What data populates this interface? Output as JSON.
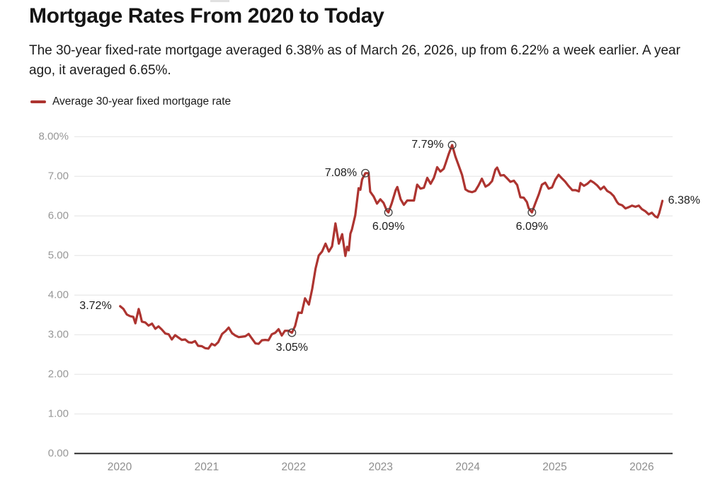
{
  "chart_data": {
    "type": "line",
    "title": "Mortgage Rates From 2020 to Today",
    "subtitle": "The 30-year fixed-rate mortgage averaged 6.38% as of March 26, 2026, up from 6.22% a week earlier. A year ago, it averaged 6.65%.",
    "legend": {
      "label": "Average 30-year fixed mortgage rate",
      "position": "top-left"
    },
    "colors": {
      "line": "#ad3430",
      "grid": "#e3e3e3",
      "axis": "#2d2d2d",
      "marker_stroke": "#3f3f3f",
      "tick_label": "#979797",
      "annotation_text": "#1c1c1c"
    },
    "grid": "horizontal-only",
    "ylim": [
      0,
      8
    ],
    "y_axis": {
      "tick_labels": [
        "8.00%",
        "7.00",
        "6.00",
        "5.00",
        "4.00",
        "3.00",
        "2.00",
        "1.00",
        "0.00"
      ],
      "tick_values": [
        8,
        7,
        6,
        5,
        4,
        3,
        2,
        1,
        0
      ]
    },
    "x_axis": {
      "tick_labels": [
        "2020",
        "2021",
        "2022",
        "2023",
        "2024",
        "2025",
        "2026"
      ],
      "tick_values": [
        2020,
        2021,
        2022,
        2023,
        2024,
        2025,
        2026
      ]
    },
    "annotations": [
      {
        "label": "3.72%",
        "date": "2020-01-02",
        "value": 3.72,
        "marker": false,
        "placement": "left"
      },
      {
        "label": "3.05%",
        "date": "2021-12-23",
        "value": 3.05,
        "marker": true,
        "placement": "below"
      },
      {
        "label": "7.08%",
        "date": "2022-10-27",
        "value": 7.08,
        "marker": true,
        "placement": "left"
      },
      {
        "label": "6.09%",
        "date": "2023-02-02",
        "value": 6.09,
        "marker": true,
        "placement": "below"
      },
      {
        "label": "7.79%",
        "date": "2023-10-26",
        "value": 7.79,
        "marker": true,
        "placement": "left"
      },
      {
        "label": "6.09%",
        "date": "2024-09-26",
        "value": 6.09,
        "marker": true,
        "placement": "below"
      },
      {
        "label": "6.38%",
        "date": "2026-03-26",
        "value": 6.38,
        "marker": false,
        "placement": "right"
      }
    ],
    "series": [
      {
        "name": "Average 30-year fixed mortgage rate",
        "points": [
          [
            "2020-01-02",
            3.72
          ],
          [
            "2020-01-16",
            3.65
          ],
          [
            "2020-01-30",
            3.51
          ],
          [
            "2020-02-13",
            3.47
          ],
          [
            "2020-02-27",
            3.45
          ],
          [
            "2020-03-05",
            3.29
          ],
          [
            "2020-03-19",
            3.65
          ],
          [
            "2020-03-26",
            3.5
          ],
          [
            "2020-04-02",
            3.33
          ],
          [
            "2020-04-16",
            3.31
          ],
          [
            "2020-04-30",
            3.23
          ],
          [
            "2020-05-14",
            3.28
          ],
          [
            "2020-05-28",
            3.15
          ],
          [
            "2020-06-11",
            3.21
          ],
          [
            "2020-06-25",
            3.13
          ],
          [
            "2020-07-09",
            3.03
          ],
          [
            "2020-07-23",
            3.01
          ],
          [
            "2020-08-06",
            2.88
          ],
          [
            "2020-08-20",
            2.99
          ],
          [
            "2020-09-03",
            2.93
          ],
          [
            "2020-09-17",
            2.87
          ],
          [
            "2020-10-01",
            2.88
          ],
          [
            "2020-10-15",
            2.81
          ],
          [
            "2020-10-29",
            2.8
          ],
          [
            "2020-11-12",
            2.84
          ],
          [
            "2020-11-25",
            2.72
          ],
          [
            "2020-12-10",
            2.71
          ],
          [
            "2020-12-24",
            2.66
          ],
          [
            "2021-01-07",
            2.65
          ],
          [
            "2021-01-21",
            2.77
          ],
          [
            "2021-02-04",
            2.73
          ],
          [
            "2021-02-18",
            2.81
          ],
          [
            "2021-03-04",
            3.02
          ],
          [
            "2021-03-18",
            3.09
          ],
          [
            "2021-04-01",
            3.18
          ],
          [
            "2021-04-15",
            3.04
          ],
          [
            "2021-04-29",
            2.98
          ],
          [
            "2021-05-13",
            2.94
          ],
          [
            "2021-05-27",
            2.95
          ],
          [
            "2021-06-10",
            2.96
          ],
          [
            "2021-06-24",
            3.02
          ],
          [
            "2021-07-08",
            2.9
          ],
          [
            "2021-07-22",
            2.78
          ],
          [
            "2021-08-05",
            2.77
          ],
          [
            "2021-08-19",
            2.86
          ],
          [
            "2021-09-02",
            2.87
          ],
          [
            "2021-09-16",
            2.86
          ],
          [
            "2021-09-30",
            3.01
          ],
          [
            "2021-10-14",
            3.05
          ],
          [
            "2021-10-28",
            3.14
          ],
          [
            "2021-11-11",
            2.98
          ],
          [
            "2021-11-24",
            3.1
          ],
          [
            "2021-12-09",
            3.1
          ],
          [
            "2021-12-23",
            3.05
          ],
          [
            "2022-01-06",
            3.22
          ],
          [
            "2022-01-20",
            3.56
          ],
          [
            "2022-02-03",
            3.55
          ],
          [
            "2022-02-17",
            3.92
          ],
          [
            "2022-03-03",
            3.76
          ],
          [
            "2022-03-17",
            4.16
          ],
          [
            "2022-03-31",
            4.67
          ],
          [
            "2022-04-14",
            5.0
          ],
          [
            "2022-04-28",
            5.1
          ],
          [
            "2022-05-12",
            5.3
          ],
          [
            "2022-05-26",
            5.1
          ],
          [
            "2022-06-09",
            5.23
          ],
          [
            "2022-06-23",
            5.81
          ],
          [
            "2022-07-07",
            5.3
          ],
          [
            "2022-07-21",
            5.54
          ],
          [
            "2022-08-04",
            4.99
          ],
          [
            "2022-08-11",
            5.22
          ],
          [
            "2022-08-18",
            5.13
          ],
          [
            "2022-08-25",
            5.55
          ],
          [
            "2022-09-01",
            5.66
          ],
          [
            "2022-09-15",
            6.02
          ],
          [
            "2022-09-29",
            6.7
          ],
          [
            "2022-10-06",
            6.66
          ],
          [
            "2022-10-13",
            6.92
          ],
          [
            "2022-10-27",
            7.08
          ],
          [
            "2022-11-10",
            7.08
          ],
          [
            "2022-11-17",
            6.61
          ],
          [
            "2022-12-01",
            6.49
          ],
          [
            "2022-12-15",
            6.31
          ],
          [
            "2022-12-29",
            6.42
          ],
          [
            "2023-01-12",
            6.33
          ],
          [
            "2023-01-26",
            6.13
          ],
          [
            "2023-02-02",
            6.09
          ],
          [
            "2023-02-16",
            6.32
          ],
          [
            "2023-03-02",
            6.65
          ],
          [
            "2023-03-09",
            6.73
          ],
          [
            "2023-03-23",
            6.42
          ],
          [
            "2023-04-06",
            6.28
          ],
          [
            "2023-04-20",
            6.39
          ],
          [
            "2023-05-04",
            6.39
          ],
          [
            "2023-05-18",
            6.39
          ],
          [
            "2023-06-01",
            6.79
          ],
          [
            "2023-06-15",
            6.69
          ],
          [
            "2023-06-29",
            6.71
          ],
          [
            "2023-07-13",
            6.96
          ],
          [
            "2023-07-27",
            6.81
          ],
          [
            "2023-08-10",
            6.96
          ],
          [
            "2023-08-17",
            7.09
          ],
          [
            "2023-08-24",
            7.23
          ],
          [
            "2023-09-07",
            7.12
          ],
          [
            "2023-09-21",
            7.19
          ],
          [
            "2023-09-28",
            7.31
          ],
          [
            "2023-10-12",
            7.57
          ],
          [
            "2023-10-26",
            7.79
          ],
          [
            "2023-11-09",
            7.5
          ],
          [
            "2023-11-22",
            7.29
          ],
          [
            "2023-12-07",
            7.03
          ],
          [
            "2023-12-21",
            6.67
          ],
          [
            "2024-01-04",
            6.62
          ],
          [
            "2024-01-18",
            6.6
          ],
          [
            "2024-02-01",
            6.63
          ],
          [
            "2024-02-15",
            6.77
          ],
          [
            "2024-02-29",
            6.94
          ],
          [
            "2024-03-14",
            6.74
          ],
          [
            "2024-03-28",
            6.79
          ],
          [
            "2024-04-11",
            6.88
          ],
          [
            "2024-04-25",
            7.17
          ],
          [
            "2024-05-02",
            7.22
          ],
          [
            "2024-05-16",
            7.02
          ],
          [
            "2024-05-30",
            7.03
          ],
          [
            "2024-06-13",
            6.95
          ],
          [
            "2024-06-27",
            6.86
          ],
          [
            "2024-07-11",
            6.89
          ],
          [
            "2024-07-25",
            6.78
          ],
          [
            "2024-08-08",
            6.47
          ],
          [
            "2024-08-22",
            6.46
          ],
          [
            "2024-09-05",
            6.35
          ],
          [
            "2024-09-12",
            6.2
          ],
          [
            "2024-09-26",
            6.09
          ],
          [
            "2024-10-10",
            6.32
          ],
          [
            "2024-10-24",
            6.54
          ],
          [
            "2024-11-07",
            6.79
          ],
          [
            "2024-11-21",
            6.84
          ],
          [
            "2024-12-05",
            6.69
          ],
          [
            "2024-12-19",
            6.72
          ],
          [
            "2025-01-02",
            6.91
          ],
          [
            "2025-01-16",
            7.04
          ],
          [
            "2025-01-30",
            6.95
          ],
          [
            "2025-02-13",
            6.87
          ],
          [
            "2025-02-27",
            6.76
          ],
          [
            "2025-03-13",
            6.65
          ],
          [
            "2025-03-27",
            6.65
          ],
          [
            "2025-04-10",
            6.62
          ],
          [
            "2025-04-17",
            6.83
          ],
          [
            "2025-05-01",
            6.76
          ],
          [
            "2025-05-15",
            6.81
          ],
          [
            "2025-05-29",
            6.89
          ],
          [
            "2025-06-12",
            6.84
          ],
          [
            "2025-06-26",
            6.77
          ],
          [
            "2025-07-10",
            6.67
          ],
          [
            "2025-07-24",
            6.74
          ],
          [
            "2025-08-07",
            6.63
          ],
          [
            "2025-08-21",
            6.58
          ],
          [
            "2025-09-04",
            6.5
          ],
          [
            "2025-09-18",
            6.35
          ],
          [
            "2025-09-25",
            6.3
          ],
          [
            "2025-10-09",
            6.27
          ],
          [
            "2025-10-23",
            6.19
          ],
          [
            "2025-11-06",
            6.22
          ],
          [
            "2025-11-20",
            6.26
          ],
          [
            "2025-12-04",
            6.23
          ],
          [
            "2025-12-18",
            6.26
          ],
          [
            "2026-01-01",
            6.17
          ],
          [
            "2026-01-15",
            6.12
          ],
          [
            "2026-01-29",
            6.04
          ],
          [
            "2026-02-12",
            6.08
          ],
          [
            "2026-02-26",
            5.99
          ],
          [
            "2026-03-05",
            5.96
          ],
          [
            "2026-03-12",
            6.06
          ],
          [
            "2026-03-19",
            6.22
          ],
          [
            "2026-03-26",
            6.38
          ]
        ]
      }
    ]
  }
}
